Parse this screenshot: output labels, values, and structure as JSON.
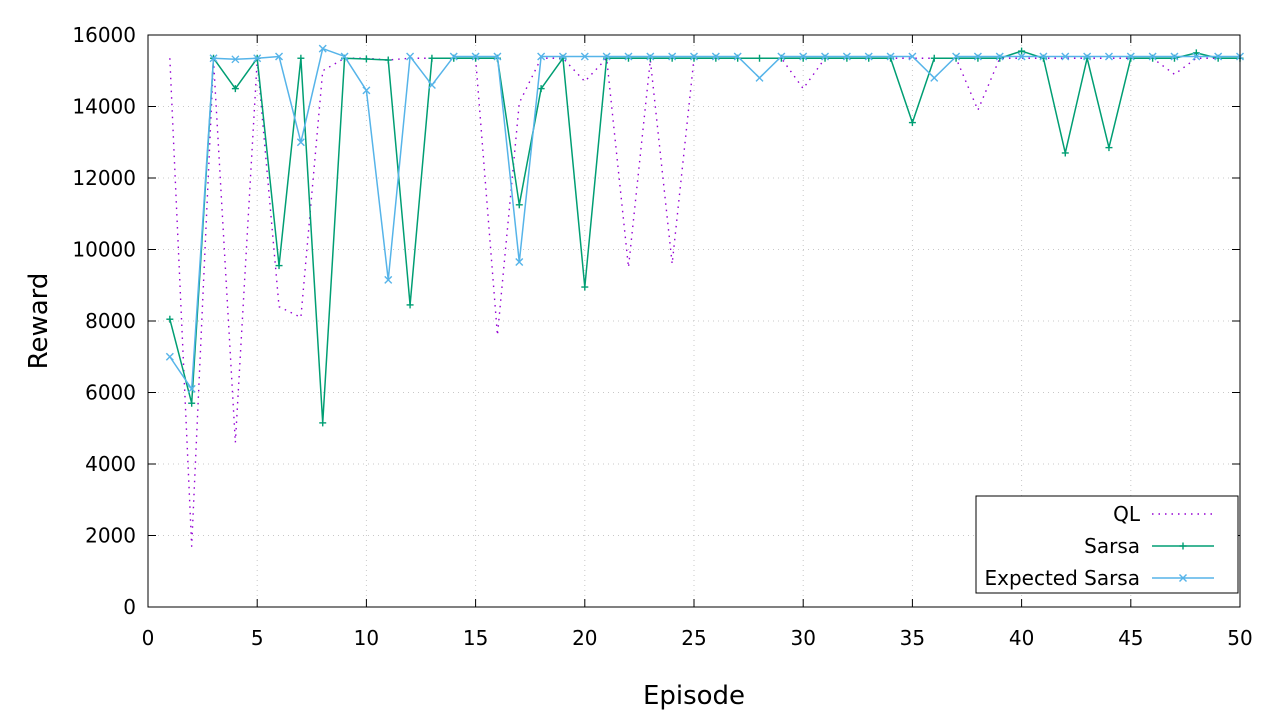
{
  "chart_data": {
    "type": "line",
    "xlabel": "Episode",
    "ylabel": "Reward",
    "xlim": [
      0,
      50
    ],
    "ylim": [
      0,
      16000
    ],
    "x_ticks": [
      0,
      5,
      10,
      15,
      20,
      25,
      30,
      35,
      40,
      45,
      50
    ],
    "y_ticks": [
      0,
      2000,
      4000,
      6000,
      8000,
      10000,
      12000,
      14000,
      16000
    ],
    "grid": true,
    "legend_position": "bottom-right",
    "x": [
      1,
      2,
      3,
      4,
      5,
      6,
      7,
      8,
      9,
      10,
      11,
      12,
      13,
      14,
      15,
      16,
      17,
      18,
      19,
      20,
      21,
      22,
      23,
      24,
      25,
      26,
      27,
      28,
      29,
      30,
      31,
      32,
      33,
      34,
      35,
      36,
      37,
      38,
      39,
      40,
      41,
      42,
      43,
      44,
      45,
      46,
      47,
      48,
      49,
      50
    ],
    "series": [
      {
        "name": "QL",
        "color": "#9400d3",
        "style": "dotted",
        "marker": "none",
        "values": [
          15350,
          1700,
          15300,
          4600,
          15300,
          8400,
          8100,
          15000,
          15350,
          15350,
          15300,
          15350,
          15350,
          15350,
          15350,
          7600,
          14100,
          15350,
          15350,
          14700,
          15350,
          9500,
          15300,
          9600,
          15350,
          15350,
          15350,
          15350,
          15350,
          14500,
          15350,
          15350,
          15350,
          15350,
          15350,
          15350,
          15350,
          13900,
          15350,
          15350,
          15350,
          15350,
          15350,
          15350,
          15350,
          15350,
          14900,
          15350,
          15350,
          15350
        ]
      },
      {
        "name": "Sarsa",
        "color": "#009e73",
        "style": "solid",
        "marker": "plus",
        "values": [
          8050,
          5700,
          15350,
          14500,
          15350,
          9550,
          15350,
          5150,
          15350,
          15330,
          15300,
          8450,
          15350,
          15350,
          15350,
          15350,
          11250,
          14500,
          15350,
          8950,
          15350,
          15350,
          15350,
          15350,
          15350,
          15350,
          15350,
          15350,
          15350,
          15350,
          15350,
          15350,
          15350,
          15350,
          13550,
          15350,
          15350,
          15350,
          15350,
          15550,
          15350,
          12700,
          15350,
          12850,
          15350,
          15350,
          15350,
          15500,
          15350,
          15350
        ]
      },
      {
        "name": "Expected Sarsa",
        "color": "#56b4e9",
        "style": "solid",
        "marker": "cross",
        "values": [
          7000,
          6100,
          15350,
          15320,
          15350,
          15400,
          13000,
          15620,
          15400,
          14450,
          9150,
          15400,
          14600,
          15400,
          15400,
          15400,
          9650,
          15400,
          15400,
          15400,
          15400,
          15400,
          15400,
          15400,
          15400,
          15400,
          15400,
          14800,
          15400,
          15400,
          15400,
          15400,
          15400,
          15400,
          15400,
          14800,
          15400,
          15400,
          15400,
          15400,
          15400,
          15400,
          15400,
          15400,
          15400,
          15400,
          15400,
          15400,
          15400,
          15400
        ]
      }
    ]
  }
}
